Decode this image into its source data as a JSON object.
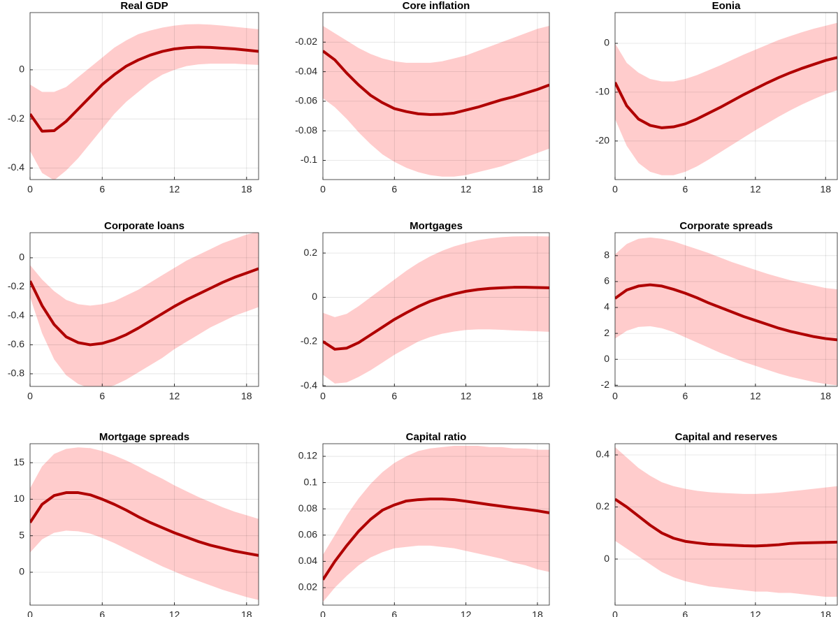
{
  "chart_data": [
    {
      "type": "line",
      "title": "Real GDP",
      "x": [
        0,
        1,
        2,
        3,
        4,
        5,
        6,
        7,
        8,
        9,
        10,
        11,
        12,
        13,
        14,
        15,
        16,
        17,
        18,
        19
      ],
      "xlim": [
        0,
        19
      ],
      "xticks": [
        0,
        6,
        12,
        18
      ],
      "ylim": [
        -0.447,
        0.233
      ],
      "yticks": [
        -0.4,
        -0.2,
        0
      ],
      "grid": true,
      "color": "#b00000",
      "band_color": "#ffcccc",
      "values": [
        -0.18,
        -0.25,
        -0.248,
        -0.21,
        -0.16,
        -0.11,
        -0.06,
        -0.02,
        0.015,
        0.04,
        0.06,
        0.075,
        0.085,
        0.09,
        0.092,
        0.091,
        0.088,
        0.085,
        0.08,
        0.075
      ],
      "lower": [
        -0.33,
        -0.42,
        -0.45,
        -0.41,
        -0.36,
        -0.3,
        -0.24,
        -0.18,
        -0.13,
        -0.09,
        -0.05,
        -0.02,
        0,
        0.015,
        0.022,
        0.025,
        0.025,
        0.025,
        0.022,
        0.02
      ],
      "upper": [
        -0.06,
        -0.09,
        -0.09,
        -0.07,
        -0.03,
        0.01,
        0.05,
        0.09,
        0.12,
        0.145,
        0.16,
        0.172,
        0.18,
        0.185,
        0.186,
        0.184,
        0.18,
        0.175,
        0.17,
        0.165
      ]
    },
    {
      "type": "line",
      "title": "Core inflation",
      "x": [
        0,
        1,
        2,
        3,
        4,
        5,
        6,
        7,
        8,
        9,
        10,
        11,
        12,
        13,
        14,
        15,
        16,
        17,
        18,
        19
      ],
      "xlim": [
        0,
        19
      ],
      "xticks": [
        0,
        6,
        12,
        18
      ],
      "ylim": [
        -0.113,
        0
      ],
      "yticks": [
        -0.1,
        -0.08,
        -0.06,
        -0.04,
        -0.02
      ],
      "grid": true,
      "color": "#b00000",
      "band_color": "#ffcccc",
      "values": [
        -0.026,
        -0.032,
        -0.041,
        -0.049,
        -0.056,
        -0.061,
        -0.065,
        -0.067,
        -0.0685,
        -0.069,
        -0.0688,
        -0.068,
        -0.066,
        -0.064,
        -0.0615,
        -0.059,
        -0.057,
        -0.0545,
        -0.052,
        -0.049
      ],
      "lower": [
        -0.058,
        -0.064,
        -0.072,
        -0.081,
        -0.089,
        -0.096,
        -0.101,
        -0.105,
        -0.108,
        -0.11,
        -0.111,
        -0.111,
        -0.11,
        -0.108,
        -0.106,
        -0.104,
        -0.101,
        -0.098,
        -0.095,
        -0.092
      ],
      "upper": [
        -0.009,
        -0.014,
        -0.019,
        -0.024,
        -0.028,
        -0.031,
        -0.033,
        -0.034,
        -0.034,
        -0.034,
        -0.033,
        -0.031,
        -0.029,
        -0.026,
        -0.023,
        -0.02,
        -0.017,
        -0.014,
        -0.011,
        -0.009
      ]
    },
    {
      "type": "line",
      "title": "Eonia",
      "x": [
        0,
        1,
        2,
        3,
        4,
        5,
        6,
        7,
        8,
        9,
        10,
        11,
        12,
        13,
        14,
        15,
        16,
        17,
        18,
        19
      ],
      "xlim": [
        0,
        19
      ],
      "xticks": [
        0,
        6,
        12,
        18
      ],
      "ylim": [
        -27.9,
        6.3
      ],
      "yticks": [
        -20,
        -10,
        0
      ],
      "grid": true,
      "color": "#b00000",
      "band_color": "#ffcccc",
      "values": [
        -8,
        -12.8,
        -15.5,
        -16.8,
        -17.3,
        -17.1,
        -16.5,
        -15.5,
        -14.3,
        -13.1,
        -11.8,
        -10.5,
        -9.3,
        -8.1,
        -7,
        -6,
        -5.1,
        -4.3,
        -3.5,
        -2.9
      ],
      "lower": [
        -15.5,
        -21,
        -24.5,
        -26.3,
        -27,
        -27,
        -26.3,
        -25.2,
        -23.8,
        -22.3,
        -20.8,
        -19.3,
        -17.8,
        -16.4,
        -15,
        -13.7,
        -12.5,
        -11.4,
        -10.4,
        -9.6
      ],
      "upper": [
        0,
        -4,
        -6,
        -7.3,
        -7.8,
        -7.8,
        -7.3,
        -6.5,
        -5.5,
        -4.5,
        -3.4,
        -2.3,
        -1.3,
        -0.3,
        0.7,
        1.5,
        2.3,
        3,
        3.6,
        4.2
      ]
    },
    {
      "type": "line",
      "title": "Corporate loans",
      "x": [
        0,
        1,
        2,
        3,
        4,
        5,
        6,
        7,
        8,
        9,
        10,
        11,
        12,
        13,
        14,
        15,
        16,
        17,
        18,
        19
      ],
      "xlim": [
        0,
        19
      ],
      "xticks": [
        0,
        6,
        12,
        18
      ],
      "ylim": [
        -0.887,
        0.173
      ],
      "yticks": [
        -0.8,
        -0.6,
        -0.4,
        -0.2,
        0
      ],
      "grid": true,
      "color": "#b00000",
      "band_color": "#ffcccc",
      "values": [
        -0.16,
        -0.33,
        -0.46,
        -0.545,
        -0.585,
        -0.6,
        -0.59,
        -0.565,
        -0.53,
        -0.485,
        -0.435,
        -0.385,
        -0.335,
        -0.29,
        -0.25,
        -0.21,
        -0.17,
        -0.135,
        -0.105,
        -0.075
      ],
      "lower": [
        -0.27,
        -0.52,
        -0.7,
        -0.81,
        -0.87,
        -0.9,
        -0.9,
        -0.88,
        -0.84,
        -0.79,
        -0.74,
        -0.69,
        -0.63,
        -0.58,
        -0.53,
        -0.48,
        -0.44,
        -0.4,
        -0.37,
        -0.34
      ],
      "upper": [
        -0.05,
        -0.15,
        -0.23,
        -0.29,
        -0.32,
        -0.33,
        -0.32,
        -0.3,
        -0.26,
        -0.22,
        -0.17,
        -0.12,
        -0.07,
        -0.02,
        0.02,
        0.06,
        0.1,
        0.13,
        0.16,
        0.18
      ]
    },
    {
      "type": "line",
      "title": "Mortgages",
      "x": [
        0,
        1,
        2,
        3,
        4,
        5,
        6,
        7,
        8,
        9,
        10,
        11,
        12,
        13,
        14,
        15,
        16,
        17,
        18,
        19
      ],
      "xlim": [
        0,
        19
      ],
      "xticks": [
        0,
        6,
        12,
        18
      ],
      "ylim": [
        -0.403,
        0.292
      ],
      "yticks": [
        -0.4,
        -0.2,
        0,
        0.2
      ],
      "grid": true,
      "color": "#b00000",
      "band_color": "#ffcccc",
      "values": [
        -0.2,
        -0.235,
        -0.23,
        -0.205,
        -0.17,
        -0.135,
        -0.1,
        -0.07,
        -0.042,
        -0.018,
        0,
        0.015,
        0.027,
        0.035,
        0.04,
        0.043,
        0.045,
        0.045,
        0.044,
        0.043
      ],
      "lower": [
        -0.35,
        -0.39,
        -0.385,
        -0.36,
        -0.33,
        -0.295,
        -0.26,
        -0.23,
        -0.2,
        -0.18,
        -0.165,
        -0.155,
        -0.148,
        -0.145,
        -0.145,
        -0.147,
        -0.15,
        -0.152,
        -0.154,
        -0.156
      ],
      "upper": [
        -0.07,
        -0.09,
        -0.075,
        -0.04,
        0,
        0.04,
        0.08,
        0.12,
        0.155,
        0.185,
        0.21,
        0.23,
        0.245,
        0.258,
        0.266,
        0.272,
        0.275,
        0.276,
        0.276,
        0.275
      ]
    },
    {
      "type": "line",
      "title": "Corporate spreads",
      "x": [
        0,
        1,
        2,
        3,
        4,
        5,
        6,
        7,
        8,
        9,
        10,
        11,
        12,
        13,
        14,
        15,
        16,
        17,
        18,
        19
      ],
      "xlim": [
        0,
        19
      ],
      "xticks": [
        0,
        6,
        12,
        18
      ],
      "ylim": [
        -2.09,
        9.77
      ],
      "yticks": [
        -2,
        0,
        2,
        4,
        6,
        8
      ],
      "grid": true,
      "color": "#b00000",
      "band_color": "#ffcccc",
      "values": [
        4.7,
        5.35,
        5.65,
        5.75,
        5.65,
        5.4,
        5.1,
        4.75,
        4.35,
        4,
        3.65,
        3.3,
        3,
        2.7,
        2.4,
        2.15,
        1.95,
        1.75,
        1.6,
        1.5
      ],
      "lower": [
        1.6,
        2.2,
        2.5,
        2.55,
        2.4,
        2.1,
        1.7,
        1.3,
        0.9,
        0.5,
        0.15,
        -0.2,
        -0.5,
        -0.8,
        -1.1,
        -1.35,
        -1.55,
        -1.75,
        -1.9,
        -2
      ],
      "upper": [
        8.1,
        8.9,
        9.3,
        9.4,
        9.3,
        9.1,
        8.8,
        8.5,
        8.2,
        7.85,
        7.5,
        7.2,
        6.9,
        6.6,
        6.35,
        6.1,
        5.9,
        5.7,
        5.5,
        5.4
      ]
    },
    {
      "type": "line",
      "title": "Mortgage spreads",
      "x": [
        0,
        1,
        2,
        3,
        4,
        5,
        6,
        7,
        8,
        9,
        10,
        11,
        12,
        13,
        14,
        15,
        16,
        17,
        18,
        19
      ],
      "xlim": [
        0,
        19
      ],
      "xticks": [
        0,
        6,
        12,
        18
      ],
      "ylim": [
        -4.5,
        17.6
      ],
      "yticks": [
        0,
        5,
        10,
        15
      ],
      "grid": true,
      "color": "#b00000",
      "band_color": "#ffcccc",
      "values": [
        6.8,
        9.3,
        10.5,
        10.9,
        10.9,
        10.6,
        10,
        9.3,
        8.5,
        7.6,
        6.8,
        6.1,
        5.4,
        4.8,
        4.2,
        3.7,
        3.3,
        2.9,
        2.6,
        2.3
      ],
      "lower": [
        2.7,
        4.5,
        5.4,
        5.7,
        5.6,
        5.3,
        4.7,
        4,
        3.2,
        2.4,
        1.6,
        0.8,
        0.1,
        -0.6,
        -1.2,
        -1.8,
        -2.4,
        -2.9,
        -3.4,
        -3.8
      ],
      "upper": [
        11.5,
        14.5,
        16.2,
        16.9,
        17.1,
        17,
        16.6,
        16,
        15.3,
        14.5,
        13.6,
        12.8,
        11.9,
        11.1,
        10.3,
        9.6,
        8.9,
        8.3,
        7.8,
        7.3
      ]
    },
    {
      "type": "line",
      "title": "Capital ratio",
      "x": [
        0,
        1,
        2,
        3,
        4,
        5,
        6,
        7,
        8,
        9,
        10,
        11,
        12,
        13,
        14,
        15,
        16,
        17,
        18,
        19
      ],
      "xlim": [
        0,
        19
      ],
      "xticks": [
        0,
        6,
        12,
        18
      ],
      "ylim": [
        0.0067,
        0.1296
      ],
      "yticks": [
        0.02,
        0.04,
        0.06,
        0.08,
        0.1,
        0.12
      ],
      "grid": true,
      "color": "#b00000",
      "band_color": "#ffcccc",
      "values": [
        0.026,
        0.04,
        0.052,
        0.063,
        0.072,
        0.079,
        0.083,
        0.086,
        0.087,
        0.0875,
        0.0875,
        0.087,
        0.0858,
        0.0845,
        0.0832,
        0.082,
        0.0808,
        0.0797,
        0.0785,
        0.077
      ],
      "lower": [
        0.009,
        0.02,
        0.029,
        0.037,
        0.043,
        0.047,
        0.05,
        0.051,
        0.052,
        0.052,
        0.051,
        0.05,
        0.048,
        0.046,
        0.044,
        0.042,
        0.039,
        0.037,
        0.034,
        0.032
      ],
      "upper": [
        0.045,
        0.06,
        0.075,
        0.088,
        0.099,
        0.108,
        0.115,
        0.12,
        0.124,
        0.126,
        0.127,
        0.128,
        0.128,
        0.128,
        0.127,
        0.127,
        0.126,
        0.126,
        0.125,
        0.125
      ]
    },
    {
      "type": "line",
      "title": "Capital and reserves",
      "x": [
        0,
        1,
        2,
        3,
        4,
        5,
        6,
        7,
        8,
        9,
        10,
        11,
        12,
        13,
        14,
        15,
        16,
        17,
        18,
        19
      ],
      "xlim": [
        0,
        19
      ],
      "xticks": [
        0,
        6,
        12,
        18
      ],
      "ylim": [
        -0.177,
        0.443
      ],
      "yticks": [
        0,
        0.2,
        0.4
      ],
      "grid": true,
      "color": "#b00000",
      "band_color": "#ffcccc",
      "values": [
        0.23,
        0.2,
        0.165,
        0.13,
        0.1,
        0.08,
        0.068,
        0.062,
        0.057,
        0.055,
        0.053,
        0.051,
        0.05,
        0.052,
        0.055,
        0.06,
        0.062,
        0.063,
        0.064,
        0.065
      ],
      "lower": [
        0.07,
        0.04,
        0.01,
        -0.02,
        -0.05,
        -0.07,
        -0.085,
        -0.095,
        -0.105,
        -0.11,
        -0.115,
        -0.12,
        -0.125,
        -0.125,
        -0.13,
        -0.13,
        -0.135,
        -0.14,
        -0.145,
        -0.145
      ],
      "upper": [
        0.43,
        0.39,
        0.35,
        0.32,
        0.295,
        0.28,
        0.27,
        0.262,
        0.257,
        0.254,
        0.252,
        0.25,
        0.25,
        0.252,
        0.255,
        0.26,
        0.265,
        0.27,
        0.275,
        0.28
      ]
    }
  ]
}
